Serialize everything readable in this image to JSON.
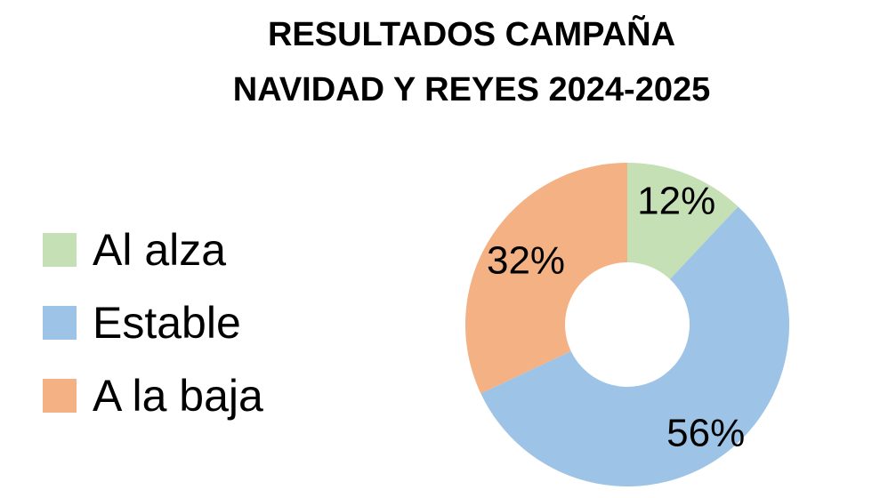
{
  "chart_data": {
    "type": "pie",
    "variant": "donut",
    "title_lines": [
      "RESULTADOS CAMPAÑA",
      "NAVIDAD Y REYES 2024-2025"
    ],
    "legend_position": "left",
    "categories": [
      "Al alza",
      "Estable",
      "A la baja"
    ],
    "values": [
      12,
      56,
      32
    ],
    "data_labels": [
      "12%",
      "56%",
      "32%"
    ],
    "colors": [
      "#C5E0B4",
      "#9DC3E6",
      "#F4B183"
    ]
  }
}
